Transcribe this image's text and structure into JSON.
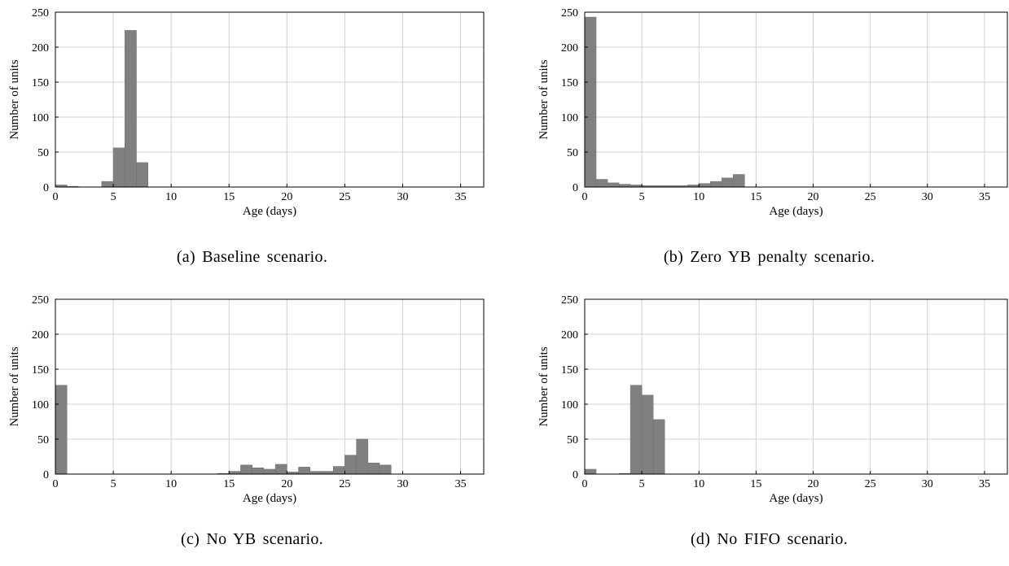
{
  "chart_data": [
    {
      "type": "bar",
      "panel": "a",
      "caption": "(a) Baseline scenario.",
      "xlabel": "Age (days)",
      "ylabel": "Number of units",
      "xlim": [
        0,
        37
      ],
      "ylim": [
        0,
        250
      ],
      "xticks": [
        0,
        5,
        10,
        15,
        20,
        25,
        30,
        35
      ],
      "yticks": [
        0,
        50,
        100,
        150,
        200,
        250
      ],
      "grid": true,
      "bin_width": 1,
      "bins": [
        {
          "x": 1,
          "y": 3
        },
        {
          "x": 2,
          "y": 1
        },
        {
          "x": 5,
          "y": 8
        },
        {
          "x": 6,
          "y": 56
        },
        {
          "x": 7,
          "y": 224
        },
        {
          "x": 8,
          "y": 35
        }
      ]
    },
    {
      "type": "bar",
      "panel": "b",
      "caption": "(b) Zero YB penalty scenario.",
      "xlabel": "Age (days)",
      "ylabel": "Number of units",
      "xlim": [
        0,
        37
      ],
      "ylim": [
        0,
        250
      ],
      "xticks": [
        0,
        5,
        10,
        15,
        20,
        25,
        30,
        35
      ],
      "yticks": [
        0,
        50,
        100,
        150,
        200,
        250
      ],
      "grid": true,
      "bin_width": 1,
      "bins": [
        {
          "x": 1,
          "y": 243
        },
        {
          "x": 2,
          "y": 11
        },
        {
          "x": 3,
          "y": 6
        },
        {
          "x": 4,
          "y": 4
        },
        {
          "x": 5,
          "y": 3
        },
        {
          "x": 6,
          "y": 2
        },
        {
          "x": 7,
          "y": 2
        },
        {
          "x": 8,
          "y": 2
        },
        {
          "x": 9,
          "y": 2
        },
        {
          "x": 10,
          "y": 3
        },
        {
          "x": 11,
          "y": 5
        },
        {
          "x": 12,
          "y": 8
        },
        {
          "x": 13,
          "y": 13
        },
        {
          "x": 14,
          "y": 18
        }
      ]
    },
    {
      "type": "bar",
      "panel": "c",
      "caption": "(c) No YB scenario.",
      "xlabel": "Age (days)",
      "ylabel": "Number of units",
      "xlim": [
        0,
        37
      ],
      "ylim": [
        0,
        250
      ],
      "xticks": [
        0,
        5,
        10,
        15,
        20,
        25,
        30,
        35
      ],
      "yticks": [
        0,
        50,
        100,
        150,
        200,
        250
      ],
      "grid": true,
      "bin_width": 1,
      "bins": [
        {
          "x": 1,
          "y": 127
        },
        {
          "x": 15,
          "y": 1
        },
        {
          "x": 16,
          "y": 4
        },
        {
          "x": 17,
          "y": 13
        },
        {
          "x": 18,
          "y": 9
        },
        {
          "x": 19,
          "y": 7
        },
        {
          "x": 20,
          "y": 14
        },
        {
          "x": 21,
          "y": 3
        },
        {
          "x": 22,
          "y": 10
        },
        {
          "x": 23,
          "y": 4
        },
        {
          "x": 24,
          "y": 4
        },
        {
          "x": 25,
          "y": 11
        },
        {
          "x": 26,
          "y": 27
        },
        {
          "x": 27,
          "y": 50
        },
        {
          "x": 28,
          "y": 16
        },
        {
          "x": 29,
          "y": 13
        }
      ]
    },
    {
      "type": "bar",
      "panel": "d",
      "caption": "(d) No FIFO scenario.",
      "xlabel": "Age (days)",
      "ylabel": "Number of units",
      "xlim": [
        0,
        37
      ],
      "ylim": [
        0,
        250
      ],
      "xticks": [
        0,
        5,
        10,
        15,
        20,
        25,
        30,
        35
      ],
      "yticks": [
        0,
        50,
        100,
        150,
        200,
        250
      ],
      "grid": true,
      "bin_width": 1,
      "bins": [
        {
          "x": 1,
          "y": 7
        },
        {
          "x": 4,
          "y": 1
        },
        {
          "x": 5,
          "y": 127
        },
        {
          "x": 6,
          "y": 113
        },
        {
          "x": 7,
          "y": 78
        }
      ]
    }
  ],
  "colors": {
    "bar": "#808080",
    "grid": "#d0d0d0",
    "axis": "#000000"
  }
}
